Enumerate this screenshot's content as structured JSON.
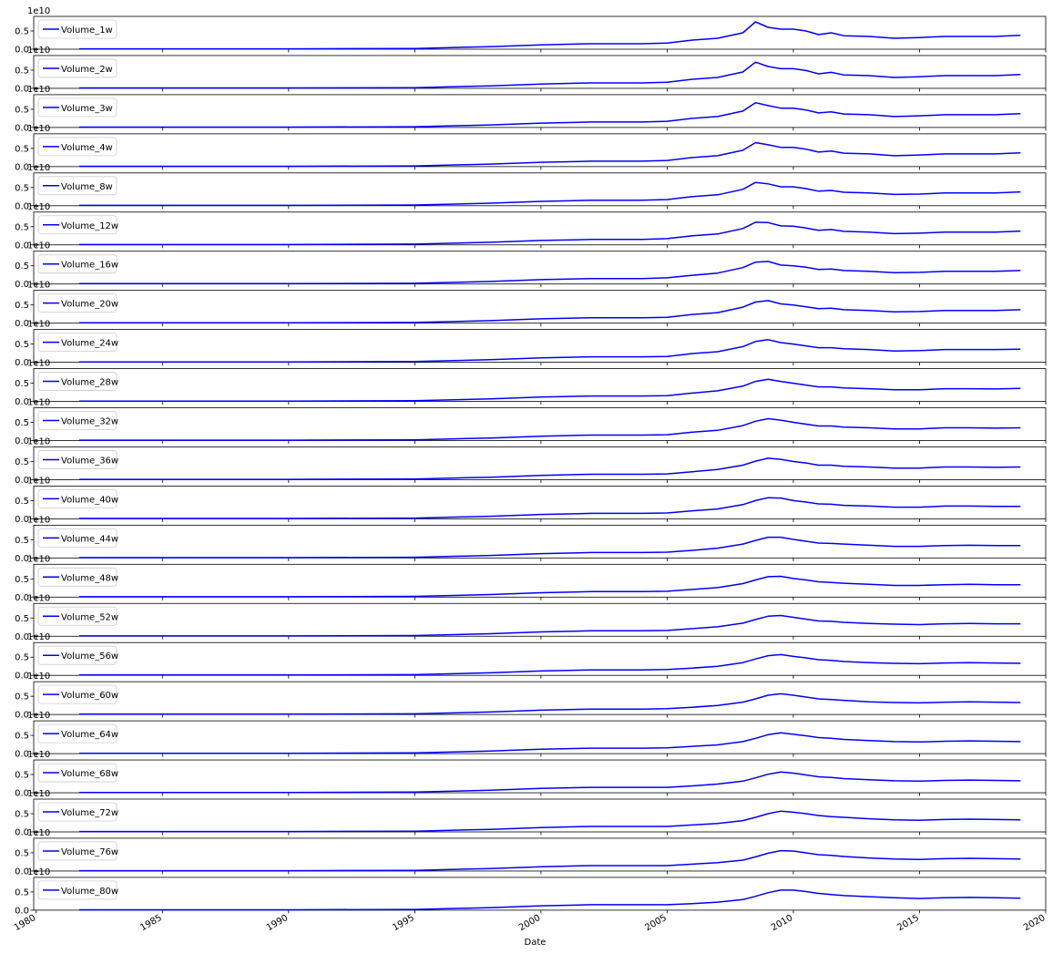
{
  "chart_data": {
    "type": "line",
    "layout": "stacked-subplots",
    "shared_x": true,
    "xlabel": "Date",
    "x_ticks": [
      "1980",
      "1985",
      "1990",
      "1995",
      "2000",
      "2005",
      "2010",
      "2015",
      "2020"
    ],
    "xlim": [
      1979.9,
      2020.0
    ],
    "y_ticks": [
      "0.0",
      "0.5"
    ],
    "y_offset_label": "1e10",
    "ylim": [
      0,
      9000000000.0
    ],
    "legend_position": "upper left",
    "line_color": "#0000ff",
    "x": [
      1981.7,
      1985,
      1990,
      1995,
      1998,
      2000,
      2002,
      2004,
      2005,
      2006,
      2007,
      2008,
      2008.5,
      2009,
      2009.5,
      2010,
      2010.5,
      2011,
      2011.5,
      2012,
      2013,
      2014,
      2015,
      2016,
      2017,
      2018,
      2019.0
    ],
    "series": [
      {
        "name": "Volume_1w",
        "values": [
          100000000.0,
          100000000.0,
          100000000.0,
          200000000.0,
          700000000.0,
          1200000000.0,
          1500000000.0,
          1500000000.0,
          1700000000.0,
          2500000000.0,
          3000000000.0,
          4500000000.0,
          7500000000.0,
          6000000000.0,
          5500000000.0,
          5500000000.0,
          5000000000.0,
          4000000000.0,
          4500000000.0,
          3700000000.0,
          3500000000.0,
          3000000000.0,
          3200000000.0,
          3500000000.0,
          3500000000.0,
          3500000000.0,
          3800000000.0
        ]
      },
      {
        "name": "Volume_2w",
        "values": [
          100000000.0,
          100000000.0,
          100000000.0,
          200000000.0,
          700000000.0,
          1200000000.0,
          1500000000.0,
          1500000000.0,
          1700000000.0,
          2500000000.0,
          3000000000.0,
          4500000000.0,
          7200000000.0,
          6000000000.0,
          5400000000.0,
          5400000000.0,
          4900000000.0,
          4000000000.0,
          4400000000.0,
          3700000000.0,
          3500000000.0,
          3000000000.0,
          3200000000.0,
          3500000000.0,
          3500000000.0,
          3500000000.0,
          3800000000.0
        ]
      },
      {
        "name": "Volume_3w",
        "values": [
          100000000.0,
          100000000.0,
          100000000.0,
          200000000.0,
          700000000.0,
          1200000000.0,
          1500000000.0,
          1500000000.0,
          1700000000.0,
          2500000000.0,
          3000000000.0,
          4500000000.0,
          6800000000.0,
          6000000000.0,
          5300000000.0,
          5300000000.0,
          4800000000.0,
          4000000000.0,
          4300000000.0,
          3700000000.0,
          3500000000.0,
          3000000000.0,
          3200000000.0,
          3500000000.0,
          3500000000.0,
          3500000000.0,
          3800000000.0
        ]
      },
      {
        "name": "Volume_4w",
        "values": [
          100000000.0,
          100000000.0,
          100000000.0,
          200000000.0,
          700000000.0,
          1200000000.0,
          1500000000.0,
          1500000000.0,
          1700000000.0,
          2500000000.0,
          3000000000.0,
          4500000000.0,
          6600000000.0,
          6000000000.0,
          5300000000.0,
          5300000000.0,
          4800000000.0,
          4000000000.0,
          4300000000.0,
          3700000000.0,
          3500000000.0,
          3000000000.0,
          3200000000.0,
          3500000000.0,
          3500000000.0,
          3500000000.0,
          3800000000.0
        ]
      },
      {
        "name": "Volume_8w",
        "values": [
          100000000.0,
          100000000.0,
          100000000.0,
          200000000.0,
          700000000.0,
          1200000000.0,
          1500000000.0,
          1500000000.0,
          1700000000.0,
          2500000000.0,
          3000000000.0,
          4500000000.0,
          6400000000.0,
          6000000000.0,
          5200000000.0,
          5200000000.0,
          4700000000.0,
          4000000000.0,
          4200000000.0,
          3700000000.0,
          3500000000.0,
          3100000000.0,
          3200000000.0,
          3500000000.0,
          3500000000.0,
          3500000000.0,
          3800000000.0
        ]
      },
      {
        "name": "Volume_12w",
        "values": [
          100000000.0,
          100000000.0,
          100000000.0,
          200000000.0,
          700000000.0,
          1200000000.0,
          1500000000.0,
          1500000000.0,
          1700000000.0,
          2500000000.0,
          3000000000.0,
          4500000000.0,
          6200000000.0,
          6100000000.0,
          5200000000.0,
          5100000000.0,
          4600000000.0,
          4000000000.0,
          4200000000.0,
          3700000000.0,
          3500000000.0,
          3100000000.0,
          3200000000.0,
          3500000000.0,
          3500000000.0,
          3500000000.0,
          3800000000.0
        ]
      },
      {
        "name": "Volume_16w",
        "values": [
          100000000.0,
          100000000.0,
          100000000.0,
          200000000.0,
          700000000.0,
          1200000000.0,
          1500000000.0,
          1500000000.0,
          1700000000.0,
          2400000000.0,
          3000000000.0,
          4500000000.0,
          6000000000.0,
          6200000000.0,
          5200000000.0,
          5000000000.0,
          4600000000.0,
          4000000000.0,
          4100000000.0,
          3700000000.0,
          3500000000.0,
          3100000000.0,
          3200000000.0,
          3500000000.0,
          3500000000.0,
          3500000000.0,
          3700000000.0
        ]
      },
      {
        "name": "Volume_20w",
        "values": [
          100000000.0,
          100000000.0,
          100000000.0,
          200000000.0,
          700000000.0,
          1200000000.0,
          1500000000.0,
          1500000000.0,
          1600000000.0,
          2400000000.0,
          2900000000.0,
          4400000000.0,
          5800000000.0,
          6200000000.0,
          5300000000.0,
          5000000000.0,
          4500000000.0,
          4000000000.0,
          4100000000.0,
          3700000000.0,
          3500000000.0,
          3100000000.0,
          3200000000.0,
          3500000000.0,
          3500000000.0,
          3500000000.0,
          3700000000.0
        ]
      },
      {
        "name": "Volume_24w",
        "values": [
          100000000.0,
          100000000.0,
          100000000.0,
          200000000.0,
          700000000.0,
          1200000000.0,
          1500000000.0,
          1500000000.0,
          1600000000.0,
          2400000000.0,
          2900000000.0,
          4300000000.0,
          5700000000.0,
          6200000000.0,
          5400000000.0,
          5000000000.0,
          4500000000.0,
          4000000000.0,
          4000000000.0,
          3700000000.0,
          3500000000.0,
          3100000000.0,
          3200000000.0,
          3500000000.0,
          3500000000.0,
          3500000000.0,
          3600000000.0
        ]
      },
      {
        "name": "Volume_28w",
        "values": [
          100000000.0,
          100000000.0,
          100000000.0,
          200000000.0,
          700000000.0,
          1200000000.0,
          1500000000.0,
          1500000000.0,
          1600000000.0,
          2300000000.0,
          2900000000.0,
          4200000000.0,
          5500000000.0,
          6100000000.0,
          5500000000.0,
          5000000000.0,
          4500000000.0,
          4000000000.0,
          4000000000.0,
          3700000000.0,
          3500000000.0,
          3200000000.0,
          3200000000.0,
          3500000000.0,
          3500000000.0,
          3400000000.0,
          3600000000.0
        ]
      },
      {
        "name": "Volume_32w",
        "values": [
          100000000.0,
          100000000.0,
          100000000.0,
          200000000.0,
          700000000.0,
          1200000000.0,
          1500000000.0,
          1500000000.0,
          1600000000.0,
          2300000000.0,
          2800000000.0,
          4100000000.0,
          5300000000.0,
          6000000000.0,
          5600000000.0,
          5000000000.0,
          4500000000.0,
          4000000000.0,
          4000000000.0,
          3700000000.0,
          3500000000.0,
          3200000000.0,
          3200000000.0,
          3500000000.0,
          3500000000.0,
          3400000000.0,
          3500000000.0
        ]
      },
      {
        "name": "Volume_36w",
        "values": [
          100000000.0,
          100000000.0,
          100000000.0,
          200000000.0,
          700000000.0,
          1200000000.0,
          1500000000.0,
          1500000000.0,
          1600000000.0,
          2200000000.0,
          2800000000.0,
          4000000000.0,
          5100000000.0,
          5900000000.0,
          5600000000.0,
          5000000000.0,
          4600000000.0,
          4000000000.0,
          4000000000.0,
          3700000000.0,
          3500000000.0,
          3200000000.0,
          3200000000.0,
          3500000000.0,
          3500000000.0,
          3400000000.0,
          3500000000.0
        ]
      },
      {
        "name": "Volume_40w",
        "values": [
          100000000.0,
          100000000.0,
          100000000.0,
          200000000.0,
          700000000.0,
          1200000000.0,
          1500000000.0,
          1500000000.0,
          1600000000.0,
          2200000000.0,
          2700000000.0,
          3900000000.0,
          5000000000.0,
          5800000000.0,
          5700000000.0,
          5000000000.0,
          4600000000.0,
          4100000000.0,
          4000000000.0,
          3700000000.0,
          3500000000.0,
          3200000000.0,
          3200000000.0,
          3500000000.0,
          3500000000.0,
          3400000000.0,
          3400000000.0
        ]
      },
      {
        "name": "Volume_44w",
        "values": [
          100000000.0,
          100000000.0,
          100000000.0,
          200000000.0,
          700000000.0,
          1200000000.0,
          1500000000.0,
          1500000000.0,
          1600000000.0,
          2100000000.0,
          2700000000.0,
          3800000000.0,
          4800000000.0,
          5700000000.0,
          5700000000.0,
          5100000000.0,
          4600000000.0,
          4100000000.0,
          4000000000.0,
          3800000000.0,
          3500000000.0,
          3200000000.0,
          3200000000.0,
          3400000000.0,
          3500000000.0,
          3400000000.0,
          3400000000.0
        ]
      },
      {
        "name": "Volume_48w",
        "values": [
          100000000.0,
          100000000.0,
          100000000.0,
          200000000.0,
          700000000.0,
          1200000000.0,
          1500000000.0,
          1500000000.0,
          1600000000.0,
          2100000000.0,
          2600000000.0,
          3700000000.0,
          4700000000.0,
          5600000000.0,
          5700000000.0,
          5100000000.0,
          4700000000.0,
          4200000000.0,
          4000000000.0,
          3800000000.0,
          3500000000.0,
          3200000000.0,
          3200000000.0,
          3400000000.0,
          3500000000.0,
          3400000000.0,
          3400000000.0
        ]
      },
      {
        "name": "Volume_52w",
        "values": [
          100000000.0,
          100000000.0,
          100000000.0,
          200000000.0,
          700000000.0,
          1200000000.0,
          1500000000.0,
          1500000000.0,
          1600000000.0,
          2100000000.0,
          2600000000.0,
          3600000000.0,
          4600000000.0,
          5500000000.0,
          5700000000.0,
          5200000000.0,
          4700000000.0,
          4200000000.0,
          4100000000.0,
          3800000000.0,
          3500000000.0,
          3300000000.0,
          3200000000.0,
          3400000000.0,
          3500000000.0,
          3400000000.0,
          3400000000.0
        ]
      },
      {
        "name": "Volume_56w",
        "values": [
          100000000.0,
          100000000.0,
          100000000.0,
          200000000.0,
          700000000.0,
          1200000000.0,
          1500000000.0,
          1500000000.0,
          1600000000.0,
          2000000000.0,
          2500000000.0,
          3500000000.0,
          4500000000.0,
          5400000000.0,
          5700000000.0,
          5200000000.0,
          4800000000.0,
          4300000000.0,
          4100000000.0,
          3800000000.0,
          3500000000.0,
          3300000000.0,
          3200000000.0,
          3400000000.0,
          3500000000.0,
          3400000000.0,
          3300000000.0
        ]
      },
      {
        "name": "Volume_60w",
        "values": [
          100000000.0,
          100000000.0,
          100000000.0,
          200000000.0,
          700000000.0,
          1200000000.0,
          1500000000.0,
          1500000000.0,
          1600000000.0,
          2000000000.0,
          2500000000.0,
          3400000000.0,
          4300000000.0,
          5300000000.0,
          5700000000.0,
          5300000000.0,
          4800000000.0,
          4300000000.0,
          4100000000.0,
          3900000000.0,
          3500000000.0,
          3300000000.0,
          3200000000.0,
          3400000000.0,
          3500000000.0,
          3400000000.0,
          3300000000.0
        ]
      },
      {
        "name": "Volume_64w",
        "values": [
          100000000.0,
          100000000.0,
          100000000.0,
          200000000.0,
          700000000.0,
          1200000000.0,
          1500000000.0,
          1500000000.0,
          1600000000.0,
          2000000000.0,
          2400000000.0,
          3300000000.0,
          4200000000.0,
          5200000000.0,
          5700000000.0,
          5300000000.0,
          4900000000.0,
          4400000000.0,
          4200000000.0,
          3900000000.0,
          3600000000.0,
          3300000000.0,
          3200000000.0,
          3400000000.0,
          3500000000.0,
          3400000000.0,
          3300000000.0
        ]
      },
      {
        "name": "Volume_68w",
        "values": [
          100000000.0,
          100000000.0,
          100000000.0,
          200000000.0,
          700000000.0,
          1200000000.0,
          1500000000.0,
          1500000000.0,
          1500000000.0,
          1900000000.0,
          2400000000.0,
          3200000000.0,
          4100000000.0,
          5100000000.0,
          5700000000.0,
          5400000000.0,
          4900000000.0,
          4400000000.0,
          4200000000.0,
          3900000000.0,
          3600000000.0,
          3300000000.0,
          3200000000.0,
          3400000000.0,
          3500000000.0,
          3400000000.0,
          3300000000.0
        ]
      },
      {
        "name": "Volume_72w",
        "values": [
          100000000.0,
          100000000.0,
          100000000.0,
          200000000.0,
          700000000.0,
          1200000000.0,
          1500000000.0,
          1500000000.0,
          1500000000.0,
          1900000000.0,
          2300000000.0,
          3100000000.0,
          4000000000.0,
          5000000000.0,
          5700000000.0,
          5400000000.0,
          5000000000.0,
          4500000000.0,
          4200000000.0,
          4000000000.0,
          3600000000.0,
          3300000000.0,
          3200000000.0,
          3400000000.0,
          3500000000.0,
          3400000000.0,
          3300000000.0
        ]
      },
      {
        "name": "Volume_76w",
        "values": [
          100000000.0,
          100000000.0,
          100000000.0,
          200000000.0,
          700000000.0,
          1200000000.0,
          1500000000.0,
          1500000000.0,
          1500000000.0,
          1900000000.0,
          2300000000.0,
          3000000000.0,
          3900000000.0,
          4900000000.0,
          5600000000.0,
          5500000000.0,
          5000000000.0,
          4500000000.0,
          4300000000.0,
          4000000000.0,
          3600000000.0,
          3300000000.0,
          3200000000.0,
          3400000000.0,
          3500000000.0,
          3400000000.0,
          3300000000.0
        ]
      },
      {
        "name": "Volume_80w",
        "values": [
          100000000.0,
          100000000.0,
          100000000.0,
          200000000.0,
          700000000.0,
          1200000000.0,
          1500000000.0,
          1500000000.0,
          1500000000.0,
          1800000000.0,
          2200000000.0,
          2900000000.0,
          3800000000.0,
          4800000000.0,
          5500000000.0,
          5500000000.0,
          5100000000.0,
          4600000000.0,
          4300000000.0,
          4000000000.0,
          3700000000.0,
          3400000000.0,
          3200000000.0,
          3400000000.0,
          3500000000.0,
          3400000000.0,
          3300000000.0
        ]
      }
    ]
  }
}
